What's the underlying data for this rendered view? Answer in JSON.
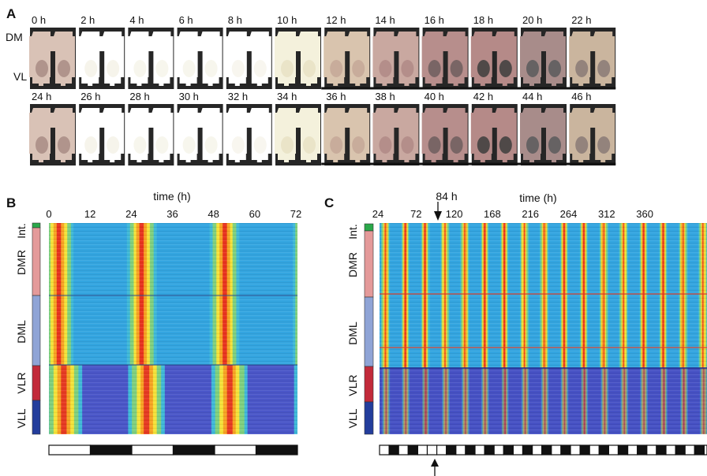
{
  "panels": {
    "A": {
      "label": "A",
      "rows": [
        {
          "time_labels": [
            "0 h",
            "2 h",
            "4 h",
            "6 h",
            "8 h",
            "10 h",
            "12 h",
            "14 h",
            "16 h",
            "18 h",
            "20 h",
            "22 h"
          ]
        },
        {
          "time_labels": [
            "24 h",
            "26 h",
            "28 h",
            "30 h",
            "32 h",
            "34 h",
            "36 h",
            "38 h",
            "40 h",
            "42 h",
            "44 h",
            "46 h"
          ]
        }
      ],
      "region_labels": [
        "DM",
        "VL"
      ],
      "dark_phase_start_index": 6
    },
    "B": {
      "label": "B",
      "axis_title": "time (h)",
      "ticks": [
        "0",
        "12",
        "24",
        "36",
        "48",
        "60",
        "72"
      ],
      "region_labels": [
        "Int.",
        "DMR",
        "DML",
        "VLR",
        "VLL"
      ],
      "region_colors": [
        "#2aa84a",
        "#e49a9a",
        "#8fa4d6",
        "#c22a3a",
        "#233d9c"
      ],
      "light_bar": [
        "light",
        "dark",
        "light",
        "dark",
        "light",
        "dark"
      ]
    },
    "C": {
      "label": "C",
      "axis_title": "time (h)",
      "ticks": [
        "24",
        "72",
        "120",
        "168",
        "216",
        "264",
        "312",
        "360"
      ],
      "marker_label": "84 h",
      "region_labels": [
        "Int.",
        "DMR",
        "DML",
        "VLR",
        "VLL"
      ],
      "region_colors": [
        "#2aa84a",
        "#e49a9a",
        "#8fa4d6",
        "#c22a3a",
        "#233d9c"
      ]
    }
  }
}
